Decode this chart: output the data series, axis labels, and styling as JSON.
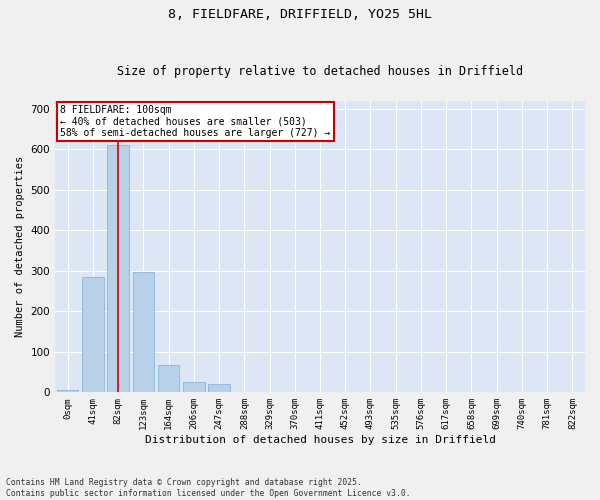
{
  "title_line1": "8, FIELDFARE, DRIFFIELD, YO25 5HL",
  "title_line2": "Size of property relative to detached houses in Driffield",
  "xlabel": "Distribution of detached houses by size in Driffield",
  "ylabel": "Number of detached properties",
  "annotation_line1": "8 FIELDFARE: 100sqm",
  "annotation_line2": "← 40% of detached houses are smaller (503)",
  "annotation_line3": "58% of semi-detached houses are larger (727) →",
  "footnote1": "Contains HM Land Registry data © Crown copyright and database right 2025.",
  "footnote2": "Contains public sector information licensed under the Open Government Licence v3.0.",
  "bar_color": "#b8d0e8",
  "bar_edge_color": "#7aafd4",
  "background_color": "#dce6f5",
  "fig_background": "#f0f0f0",
  "vline_color": "#cc0000",
  "vline_x": 2,
  "annotation_box_color": "#cc0000",
  "categories": [
    "0sqm",
    "41sqm",
    "82sqm",
    "123sqm",
    "164sqm",
    "206sqm",
    "247sqm",
    "288sqm",
    "329sqm",
    "370sqm",
    "411sqm",
    "452sqm",
    "493sqm",
    "535sqm",
    "576sqm",
    "617sqm",
    "658sqm",
    "699sqm",
    "740sqm",
    "781sqm",
    "822sqm"
  ],
  "values": [
    5,
    285,
    610,
    298,
    68,
    25,
    20,
    0,
    0,
    0,
    0,
    0,
    0,
    0,
    0,
    0,
    0,
    0,
    0,
    0,
    0
  ],
  "ylim": [
    0,
    720
  ],
  "yticks": [
    0,
    100,
    200,
    300,
    400,
    500,
    600,
    700
  ]
}
